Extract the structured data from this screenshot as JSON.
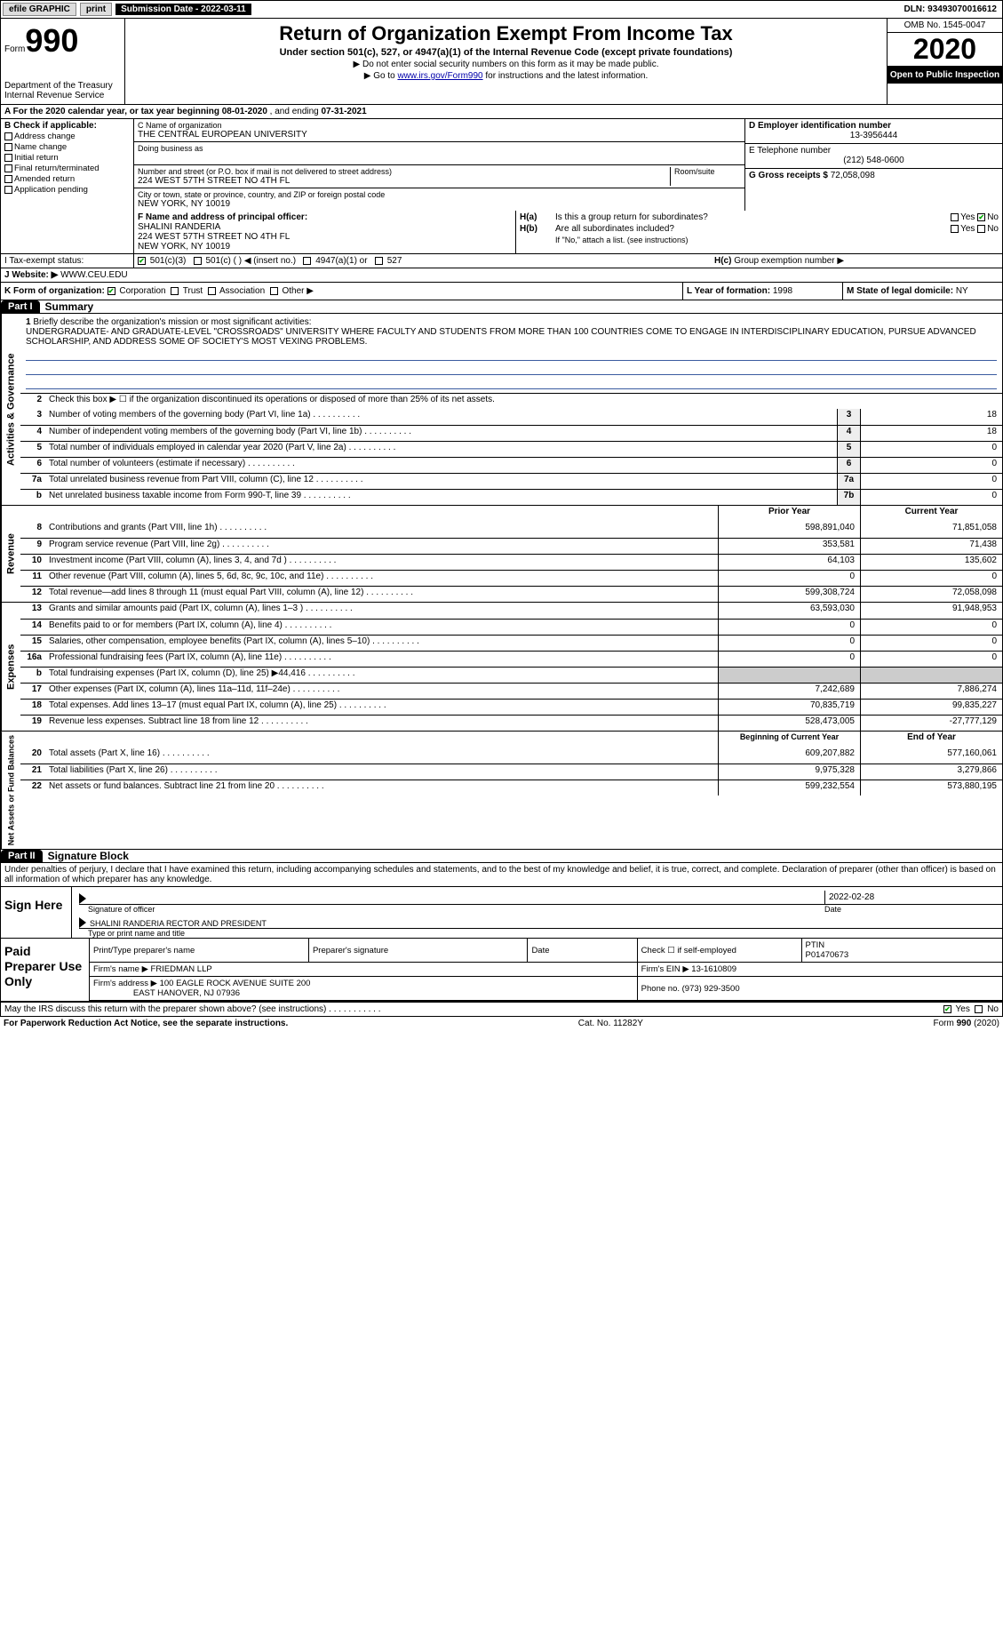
{
  "colors": {
    "black": "#000000",
    "white": "#ffffff",
    "grey_btn": "#dddddd",
    "link": "#0000aa",
    "rule_blue": "#3a5ba0",
    "check_green": "#00aa00"
  },
  "topbar": {
    "efile": "efile GRAPHIC",
    "print": "print",
    "subm_label": "Submission Date - 2022-03-11",
    "dln": "DLN: 93493070016612"
  },
  "header": {
    "form_word": "Form",
    "form_no": "990",
    "dept1": "Department of the Treasury",
    "dept2": "Internal Revenue Service",
    "title": "Return of Organization Exempt From Income Tax",
    "subtitle": "Under section 501(c), 527, or 4947(a)(1) of the Internal Revenue Code (except private foundations)",
    "note1": "▶ Do not enter social security numbers on this form as it may be made public.",
    "note2_a": "▶ Go to ",
    "note2_link": "www.irs.gov/Form990",
    "note2_b": " for instructions and the latest information.",
    "omb": "OMB No. 1545-0047",
    "year": "2020",
    "otp": "Open to Public Inspection"
  },
  "period": {
    "prefix": "A For the 2020 calendar year, or tax year beginning ",
    "begin": "08-01-2020",
    "mid": " , and ending ",
    "end": "07-31-2021"
  },
  "boxB": {
    "label": "B Check if applicable:",
    "items": [
      "Address change",
      "Name change",
      "Initial return",
      "Final return/terminated",
      "Amended return",
      "Application pending"
    ]
  },
  "boxC": {
    "name_lbl": "C Name of organization",
    "name": "THE CENTRAL EUROPEAN UNIVERSITY",
    "dba_lbl": "Doing business as",
    "dba": "",
    "addr_lbl": "Number and street (or P.O. box if mail is not delivered to street address)",
    "room_lbl": "Room/suite",
    "addr": "224 WEST 57TH STREET NO 4TH FL",
    "city_lbl": "City or town, state or province, country, and ZIP or foreign postal code",
    "city": "NEW YORK, NY  10019"
  },
  "boxD": {
    "lbl": "D Employer identification number",
    "val": "13-3956444"
  },
  "boxE": {
    "lbl": "E Telephone number",
    "val": "(212) 548-0600"
  },
  "boxG": {
    "lbl": "G Gross receipts $",
    "val": "72,058,098"
  },
  "boxF": {
    "lbl": "F Name and address of principal officer:",
    "name": "SHALINI RANDERIA",
    "addr1": "224 WEST 57TH STREET NO 4TH FL",
    "addr2": "NEW YORK, NY  10019"
  },
  "boxH": {
    "a_lbl": "H(a)",
    "a_txt": "Is this a group return for subordinates?",
    "a_yes": "Yes",
    "a_no": "No",
    "a_checked": "No",
    "b_lbl": "H(b)",
    "b_txt": "Are all subordinates included?",
    "b_yes": "Yes",
    "b_no": "No",
    "b_note": "If \"No,\" attach a list. (see instructions)",
    "c_lbl": "H(c)",
    "c_txt": "Group exemption number ▶"
  },
  "boxI": {
    "lbl": "I   Tax-exempt status:",
    "opts": [
      "501(c)(3)",
      "501(c) (   ) ◀ (insert no.)",
      "4947(a)(1) or",
      "527"
    ],
    "checked": 0
  },
  "boxJ": {
    "lbl": "J  Website: ▶",
    "val": "WWW.CEU.EDU"
  },
  "boxK": {
    "lbl": "K Form of organization:",
    "opts": [
      "Corporation",
      "Trust",
      "Association",
      "Other ▶"
    ],
    "checked": 0
  },
  "boxL": {
    "lbl": "L Year of formation:",
    "val": "1998"
  },
  "boxM": {
    "lbl": "M State of legal domicile:",
    "val": "NY"
  },
  "part1": {
    "hdr": "Part I",
    "title": "Summary",
    "side1": "Activities & Governance",
    "side2": "Revenue",
    "side3": "Expenses",
    "side4": "Net Assets or Fund Balances",
    "q1_lbl": "1",
    "q1": "Briefly describe the organization's mission or most significant activities:",
    "mission": "UNDERGRADUATE- AND GRADUATE-LEVEL \"CROSSROADS\" UNIVERSITY WHERE FACULTY AND STUDENTS FROM MORE THAN 100 COUNTRIES COME TO ENGAGE IN INTERDISCIPLINARY EDUCATION, PURSUE ADVANCED SCHOLARSHIP, AND ADDRESS SOME OF SOCIETY'S MOST VEXING PROBLEMS.",
    "q2_lbl": "2",
    "q2": "Check this box ▶ ☐ if the organization discontinued its operations or disposed of more than 25% of its net assets.",
    "rows_a": [
      {
        "n": "3",
        "d": "Number of voting members of the governing body (Part VI, line 1a)",
        "box": "3",
        "v": "18"
      },
      {
        "n": "4",
        "d": "Number of independent voting members of the governing body (Part VI, line 1b)",
        "box": "4",
        "v": "18"
      },
      {
        "n": "5",
        "d": "Total number of individuals employed in calendar year 2020 (Part V, line 2a)",
        "box": "5",
        "v": "0"
      },
      {
        "n": "6",
        "d": "Total number of volunteers (estimate if necessary)",
        "box": "6",
        "v": "0"
      },
      {
        "n": "7a",
        "d": "Total unrelated business revenue from Part VIII, column (C), line 12",
        "box": "7a",
        "v": "0"
      },
      {
        "n": "b",
        "d": "Net unrelated business taxable income from Form 990-T, line 39",
        "box": "7b",
        "v": "0"
      }
    ],
    "col_py": "Prior Year",
    "col_cy": "Current Year",
    "rows_r": [
      {
        "n": "8",
        "d": "Contributions and grants (Part VIII, line 1h)",
        "py": "598,891,040",
        "cy": "71,851,058"
      },
      {
        "n": "9",
        "d": "Program service revenue (Part VIII, line 2g)",
        "py": "353,581",
        "cy": "71,438"
      },
      {
        "n": "10",
        "d": "Investment income (Part VIII, column (A), lines 3, 4, and 7d )",
        "py": "64,103",
        "cy": "135,602"
      },
      {
        "n": "11",
        "d": "Other revenue (Part VIII, column (A), lines 5, 6d, 8c, 9c, 10c, and 11e)",
        "py": "0",
        "cy": "0"
      },
      {
        "n": "12",
        "d": "Total revenue—add lines 8 through 11 (must equal Part VIII, column (A), line 12)",
        "py": "599,308,724",
        "cy": "72,058,098"
      }
    ],
    "rows_e": [
      {
        "n": "13",
        "d": "Grants and similar amounts paid (Part IX, column (A), lines 1–3 )",
        "py": "63,593,030",
        "cy": "91,948,953"
      },
      {
        "n": "14",
        "d": "Benefits paid to or for members (Part IX, column (A), line 4)",
        "py": "0",
        "cy": "0"
      },
      {
        "n": "15",
        "d": "Salaries, other compensation, employee benefits (Part IX, column (A), lines 5–10)",
        "py": "0",
        "cy": "0"
      },
      {
        "n": "16a",
        "d": "Professional fundraising fees (Part IX, column (A), line 11e)",
        "py": "0",
        "cy": "0"
      },
      {
        "n": "b",
        "d": "Total fundraising expenses (Part IX, column (D), line 25) ▶44,416",
        "py": "",
        "cy": ""
      },
      {
        "n": "17",
        "d": "Other expenses (Part IX, column (A), lines 11a–11d, 11f–24e)",
        "py": "7,242,689",
        "cy": "7,886,274"
      },
      {
        "n": "18",
        "d": "Total expenses. Add lines 13–17 (must equal Part IX, column (A), line 25)",
        "py": "70,835,719",
        "cy": "99,835,227"
      },
      {
        "n": "19",
        "d": "Revenue less expenses. Subtract line 18 from line 12",
        "py": "528,473,005",
        "cy": "-27,777,129"
      }
    ],
    "col_bcy": "Beginning of Current Year",
    "col_eoy": "End of Year",
    "rows_n": [
      {
        "n": "20",
        "d": "Total assets (Part X, line 16)",
        "py": "609,207,882",
        "cy": "577,160,061"
      },
      {
        "n": "21",
        "d": "Total liabilities (Part X, line 26)",
        "py": "9,975,328",
        "cy": "3,279,866"
      },
      {
        "n": "22",
        "d": "Net assets or fund balances. Subtract line 21 from line 20",
        "py": "599,232,554",
        "cy": "573,880,195"
      }
    ]
  },
  "part2": {
    "hdr": "Part II",
    "title": "Signature Block",
    "intro": "Under penalties of perjury, I declare that I have examined this return, including accompanying schedules and statements, and to the best of my knowledge and belief, it is true, correct, and complete. Declaration of preparer (other than officer) is based on all information of which preparer has any knowledge.",
    "sign_here": "Sign Here",
    "sig_of_officer": "Signature of officer",
    "date_lbl": "Date",
    "sig_date": "2022-02-28",
    "officer_name": "SHALINI RANDERIA  RECTOR AND PRESIDENT",
    "type_name": "Type or print name and title",
    "paid_lbl": "Paid Preparer Use Only",
    "pp_name_lbl": "Print/Type preparer's name",
    "pp_sig_lbl": "Preparer's signature",
    "pp_date_lbl": "Date",
    "pp_check_lbl": "Check ☐ if self-employed",
    "ptin_lbl": "PTIN",
    "ptin": "P01470673",
    "firm_name_lbl": "Firm's name   ▶",
    "firm_name": "FRIEDMAN LLP",
    "firm_ein_lbl": "Firm's EIN ▶",
    "firm_ein": "13-1610809",
    "firm_addr_lbl": "Firm's address ▶",
    "firm_addr1": "100 EAGLE ROCK AVENUE SUITE 200",
    "firm_addr2": "EAST HANOVER, NJ  07936",
    "phone_lbl": "Phone no.",
    "phone": "(973) 929-3500",
    "discuss": "May the IRS discuss this return with the preparer shown above? (see instructions)",
    "discuss_yes": "Yes",
    "discuss_no": "No",
    "discuss_checked": "Yes"
  },
  "footer": {
    "left": "For Paperwork Reduction Act Notice, see the separate instructions.",
    "center": "Cat. No. 11282Y",
    "right": "Form 990 (2020)"
  }
}
